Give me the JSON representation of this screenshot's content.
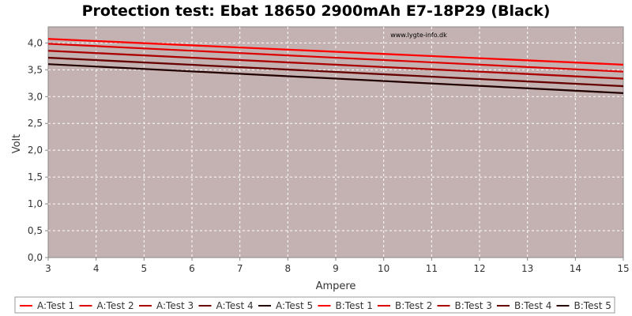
{
  "chart_data": {
    "type": "line",
    "title": "Protection test: Ebat 18650 2900mAh E7-18P29 (Black)",
    "xlabel": "Ampere",
    "ylabel": "Volt",
    "watermark": "www.lygte-info.dk",
    "xlim": [
      3,
      15
    ],
    "ylim": [
      0,
      4.3
    ],
    "x_ticks": [
      3,
      4,
      5,
      6,
      7,
      8,
      9,
      10,
      11,
      12,
      13,
      14,
      15
    ],
    "y_ticks": [
      0,
      0.5,
      1.0,
      1.5,
      2.0,
      2.5,
      3.0,
      3.5,
      4.0
    ],
    "y_tick_labels": [
      "0,0",
      "0,5",
      "1,0",
      "1,5",
      "2,0",
      "2,5",
      "3,0",
      "3,5",
      "4,0"
    ],
    "grid": true,
    "plot_background": "#c4b1b1",
    "legend_placement": "bottom",
    "series": [
      {
        "name": "A:Test 1",
        "color": "#ff0000",
        "x": [
          3,
          15
        ],
        "y": [
          4.08,
          3.6
        ]
      },
      {
        "name": "A:Test 2",
        "color": "#dd0000",
        "x": [
          3,
          15
        ],
        "y": [
          3.99,
          3.47
        ]
      },
      {
        "name": "A:Test 3",
        "color": "#aa0000",
        "x": [
          3,
          15
        ],
        "y": [
          3.86,
          3.34
        ]
      },
      {
        "name": "A:Test 4",
        "color": "#660000",
        "x": [
          3,
          15
        ],
        "y": [
          3.73,
          3.2
        ]
      },
      {
        "name": "A:Test 5",
        "color": "#220000",
        "x": [
          3,
          15
        ],
        "y": [
          3.61,
          3.07
        ]
      },
      {
        "name": "B:Test 1",
        "color": "#ff0000",
        "x": [
          3,
          15
        ],
        "y": [
          4.07,
          3.59
        ]
      },
      {
        "name": "B:Test 2",
        "color": "#dd0000",
        "x": [
          3,
          15
        ],
        "y": [
          3.98,
          3.46
        ]
      },
      {
        "name": "B:Test 3",
        "color": "#aa0000",
        "x": [
          3,
          15
        ],
        "y": [
          3.85,
          3.33
        ]
      },
      {
        "name": "B:Test 4",
        "color": "#660000",
        "x": [
          3,
          15
        ],
        "y": [
          3.72,
          3.19
        ]
      },
      {
        "name": "B:Test 5",
        "color": "#220000",
        "x": [
          3,
          15
        ],
        "y": [
          3.6,
          3.06
        ]
      }
    ]
  }
}
